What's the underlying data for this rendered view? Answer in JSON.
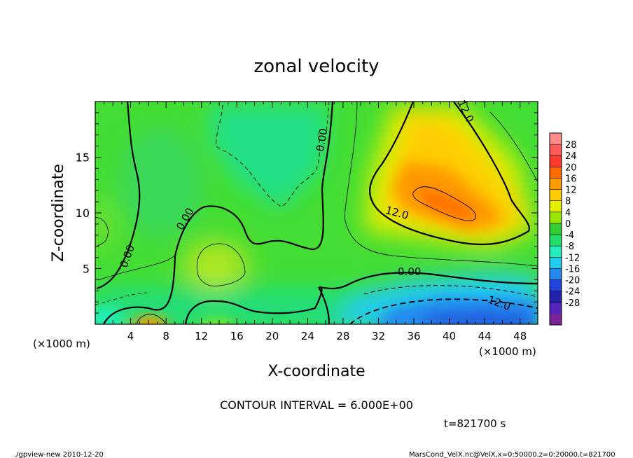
{
  "chart_data": {
    "type": "heatmap",
    "title": "zonal velocity",
    "xlabel": "X-coordinate",
    "ylabel": "Z-coordinate",
    "x_unit": "(×1000 m)",
    "y_unit": "(×1000 m)",
    "xlim": [
      0,
      50
    ],
    "ylim": [
      0,
      20
    ],
    "x_ticks": [
      4,
      8,
      12,
      16,
      20,
      24,
      28,
      32,
      36,
      40,
      44,
      48
    ],
    "y_ticks": [
      5,
      10,
      15
    ],
    "colorbar": {
      "labels": [
        28,
        24,
        20,
        16,
        12,
        8,
        4,
        0,
        -4,
        -8,
        -12,
        -16,
        -20,
        -24,
        -28
      ],
      "colors": [
        "#ff8a8a",
        "#ff5a5a",
        "#ff3a2a",
        "#ff6a00",
        "#ff9a00",
        "#ffcc00",
        "#e6ee00",
        "#99e600",
        "#33cc33",
        "#22dd66",
        "#22eebb",
        "#22ccee",
        "#2288ee",
        "#2244dd",
        "#2222aa",
        "#5522bb",
        "#772299"
      ]
    },
    "contour_labels": [
      {
        "text": "12.0",
        "x": 41.5,
        "y": 19.0,
        "angle": 65
      },
      {
        "text": "0.00",
        "x": 26.0,
        "y": 16.5,
        "angle": -80
      },
      {
        "text": "12.0",
        "x": 34.0,
        "y": 9.7,
        "angle": 15
      },
      {
        "text": "0.00",
        "x": 10.5,
        "y": 9.3,
        "angle": -60
      },
      {
        "text": "0.00",
        "x": 4.0,
        "y": 6.0,
        "angle": -70
      },
      {
        "text": "0.00",
        "x": 35.5,
        "y": 4.4,
        "angle": 0
      },
      {
        "text": "12.0",
        "x": 45.5,
        "y": 1.6,
        "angle": 20
      }
    ],
    "contour_interval_text": "CONTOUR INTERVAL = 6.000E+00",
    "time_text": "t=821700 s",
    "footer_left": "./gpview-new  2010-12-20",
    "footer_right": "MarsCond_VelX.nc@VelX,x=0:50000,z=0:20000,t=821700"
  }
}
